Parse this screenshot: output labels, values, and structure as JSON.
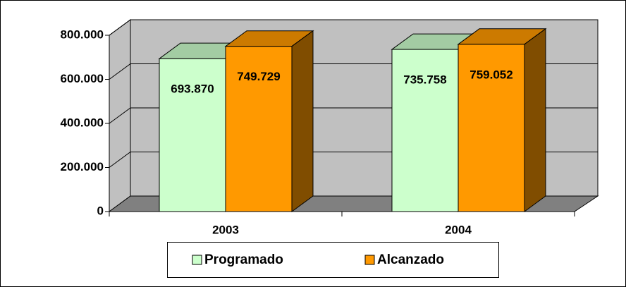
{
  "chart_data": {
    "type": "bar3d",
    "categories": [
      "2003",
      "2004"
    ],
    "series": [
      {
        "name": "Programado",
        "color": "#ccffcc",
        "values": [
          693870,
          735758
        ],
        "value_labels": [
          "693.870",
          "735.758"
        ]
      },
      {
        "name": "Alcanzado",
        "color": "#ff9900",
        "values": [
          749729,
          759052
        ],
        "value_labels": [
          "749.729",
          "759.052"
        ]
      }
    ],
    "ylim": [
      0,
      800000
    ],
    "yticks": [
      0,
      {
        "value": 200000,
        "label": "200.000"
      },
      {
        "value": 400000,
        "label": "400.000"
      },
      {
        "value": 600000,
        "label": "600.000"
      },
      {
        "value": 800000,
        "label": "800.000"
      }
    ],
    "grid": true,
    "legend": "bottom"
  }
}
